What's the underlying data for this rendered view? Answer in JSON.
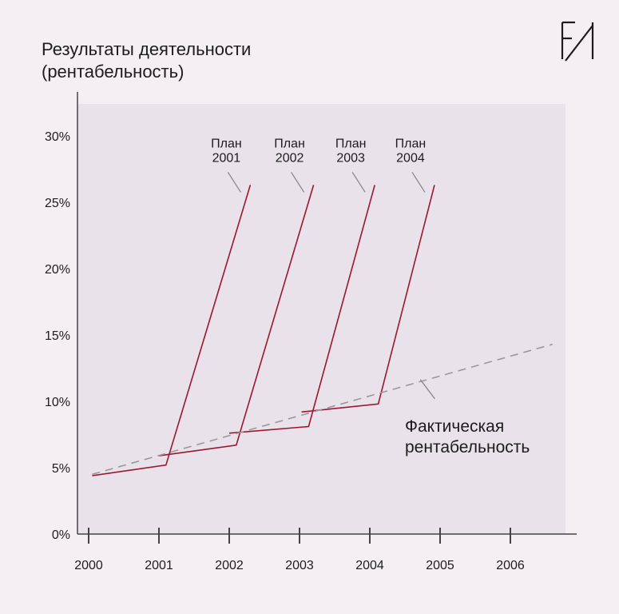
{
  "title_lines": [
    "Результаты деятельности",
    "(рентабельность)"
  ],
  "colors": {
    "background": "#f4eff2",
    "plot_area": "#e9e2ea",
    "plan_line": "#9b1633",
    "actual_line": "#999999",
    "axis": "#444444"
  },
  "logo": {
    "icon": "logo-monogram-icon"
  },
  "chart_data": {
    "type": "line",
    "title": "Результаты деятельности (рентабельность)",
    "xlabel": "",
    "ylabel": "",
    "x_ticks": [
      "2000",
      "2001",
      "2002",
      "2003",
      "2004",
      "2005",
      "2006"
    ],
    "y_ticks": [
      "0%",
      "5%",
      "10%",
      "15%",
      "20%",
      "25%",
      "30%"
    ],
    "xlim": [
      2000,
      2006.7
    ],
    "ylim": [
      0,
      30
    ],
    "grid": false,
    "series": [
      {
        "name": "План 2001",
        "label_lines": [
          "План",
          "2001"
        ],
        "style": "solid",
        "x": [
          2000.05,
          2001.1,
          2002.3
        ],
        "y": [
          4.4,
          5.2,
          26.3
        ]
      },
      {
        "name": "План 2002",
        "label_lines": [
          "План",
          "2002"
        ],
        "style": "solid",
        "x": [
          2001.0,
          2002.1,
          2003.2
        ],
        "y": [
          5.9,
          6.7,
          26.3
        ]
      },
      {
        "name": "План 2003",
        "label_lines": [
          "План",
          "2003"
        ],
        "style": "solid",
        "x": [
          2002.0,
          2003.13,
          2004.07
        ],
        "y": [
          7.6,
          8.1,
          26.3
        ]
      },
      {
        "name": "План 2004",
        "label_lines": [
          "План",
          "2004"
        ],
        "style": "solid",
        "x": [
          2003.03,
          2004.12,
          2004.92
        ],
        "y": [
          9.2,
          9.8,
          26.3
        ]
      },
      {
        "name": "Фактическая рентабельность",
        "label_lines": [
          "Фактическая",
          "рентабельность"
        ],
        "style": "dashed",
        "x": [
          2000.05,
          2006.6
        ],
        "y": [
          4.5,
          14.3
        ]
      }
    ]
  }
}
